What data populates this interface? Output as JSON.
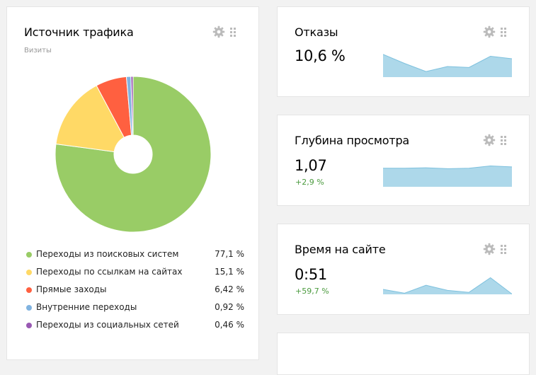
{
  "traffic": {
    "title": "Источник трафика",
    "subtitle": "Визиты",
    "items": [
      {
        "label": "Переходы из поисковых систем",
        "value": "77,1 %",
        "share": 77.1,
        "color": "#99cc66"
      },
      {
        "label": "Переходы по ссылкам на сайтах",
        "value": "15,1 %",
        "share": 15.1,
        "color": "#ffd966"
      },
      {
        "label": "Прямые заходы",
        "value": "6,42 %",
        "share": 6.42,
        "color": "#ff6040"
      },
      {
        "label": "Внутренние переходы",
        "value": "0,92 %",
        "share": 0.92,
        "color": "#80b3e0"
      },
      {
        "label": "Переходы из социальных сетей",
        "value": "0,46 %",
        "share": 0.46,
        "color": "#9959b3"
      }
    ]
  },
  "bounces": {
    "title": "Отказы",
    "value": "10,6 %",
    "trend": [
      0.73,
      0.44,
      0.18,
      0.34,
      0.31,
      0.67,
      0.59
    ]
  },
  "depth": {
    "title": "Глубина просмотра",
    "value": "1,07",
    "delta": "+2,9 %",
    "trend": [
      0.82,
      0.82,
      0.84,
      0.8,
      0.82,
      0.92,
      0.88
    ]
  },
  "time": {
    "title": "Время на сайте",
    "value": "0:51",
    "delta": "+59,7 %",
    "trend": [
      0.25,
      0.06,
      0.46,
      0.2,
      0.1,
      0.84,
      0.02
    ]
  },
  "colors": {
    "sparkline_fill": "#add8ea",
    "sparkline_stroke": "#7ec1de",
    "icon": "#bbbbbb",
    "delta_positive": "#4a9a3d"
  },
  "icons": {
    "settings": "gear-icon",
    "drag": "grip-dots-icon"
  }
}
